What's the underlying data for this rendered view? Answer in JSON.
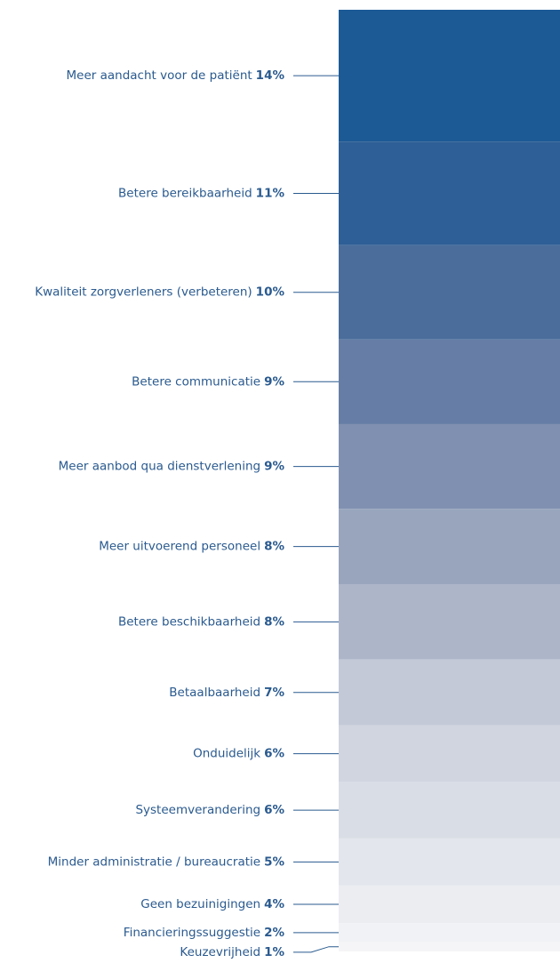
{
  "chart_data": {
    "type": "stacked_column",
    "categories": [
      "Meer aandacht voor de patiënt",
      "Betere bereikbaarheid",
      "Kwaliteit zorgverleners (verbeteren)",
      "Betere communicatie",
      "Meer aanbod qua dienstverlening",
      "Meer uitvoerend personeel",
      "Betere beschikbaarheid",
      "Betaalbaarheid",
      "Onduidelijk",
      "Systeemverandering",
      "Minder administratie / bureaucratie",
      "Geen bezuinigingen",
      "Financieringssuggestie",
      "Keuzevrijheid"
    ],
    "values": [
      14,
      11,
      10,
      9,
      9,
      8,
      8,
      7,
      6,
      6,
      5,
      4,
      2,
      1
    ],
    "value_labels": [
      "14%",
      "11%",
      "10%",
      "9%",
      "9%",
      "8%",
      "8%",
      "7%",
      "6%",
      "6%",
      "5%",
      "4%",
      "2%",
      "1%"
    ],
    "colors": [
      "#1c5a96",
      "#2e5f96",
      "#4a6d9b",
      "#667ea5",
      "#8090b0",
      "#98a5bd",
      "#adb6c9",
      "#c3c9d7",
      "#d0d5df",
      "#d9dde5",
      "#e3e6ec",
      "#ecedf1",
      "#f1f2f5",
      "#f5f5f7"
    ]
  }
}
